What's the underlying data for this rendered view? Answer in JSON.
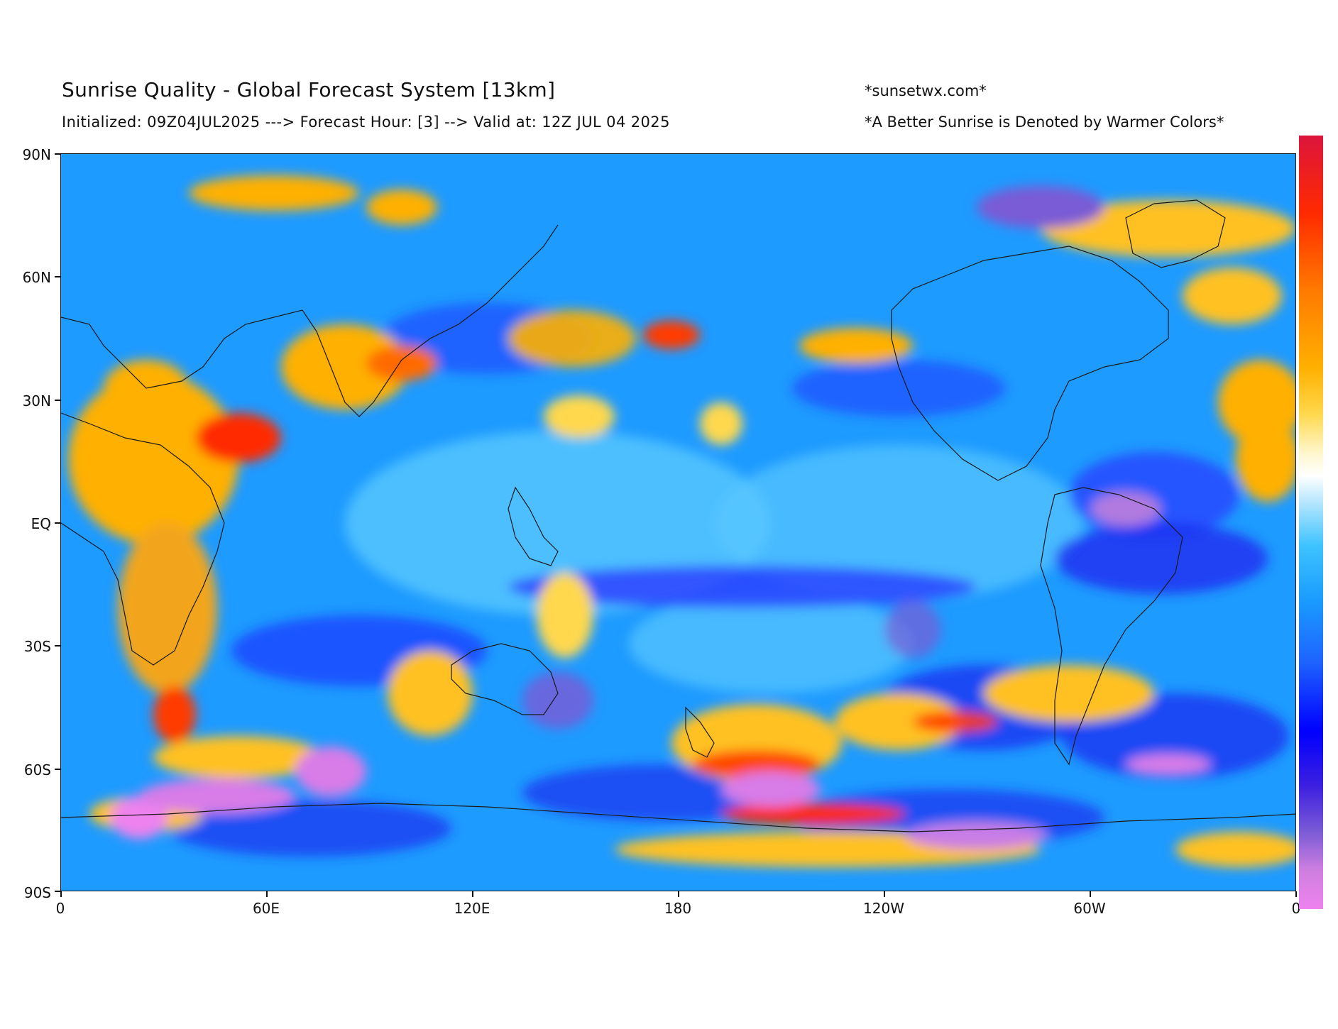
{
  "header": {
    "title": "Sunrise Quality - Global Forecast System [13km]",
    "subtitle": "Initialized: 09Z04JUL2025 ---> Forecast Hour: [3] --> Valid at: 12Z JUL 04 2025",
    "site": "*sunsetwx.com*",
    "note": "*A Better Sunrise is Denoted by Warmer Colors*"
  },
  "axes": {
    "lat_labels": [
      "90N",
      "60N",
      "30N",
      "EQ",
      "30S",
      "60S",
      "90S"
    ],
    "lon_labels": [
      "0",
      "60E",
      "120E",
      "180",
      "120W",
      "60W",
      "0"
    ]
  },
  "colors": {
    "best": "#dc143c",
    "good": "#ffb000",
    "neutral": "#ffffff",
    "fair": "#3ec3ff",
    "poor": "#0000ff",
    "worst": "#ee82ee",
    "background_field": "#1e9bff",
    "coastline": "#1a1a1a"
  },
  "legend": {
    "type": "colorbar",
    "orientation": "vertical",
    "placement": "right",
    "direction": "warm colors at top = better sunrise"
  }
}
